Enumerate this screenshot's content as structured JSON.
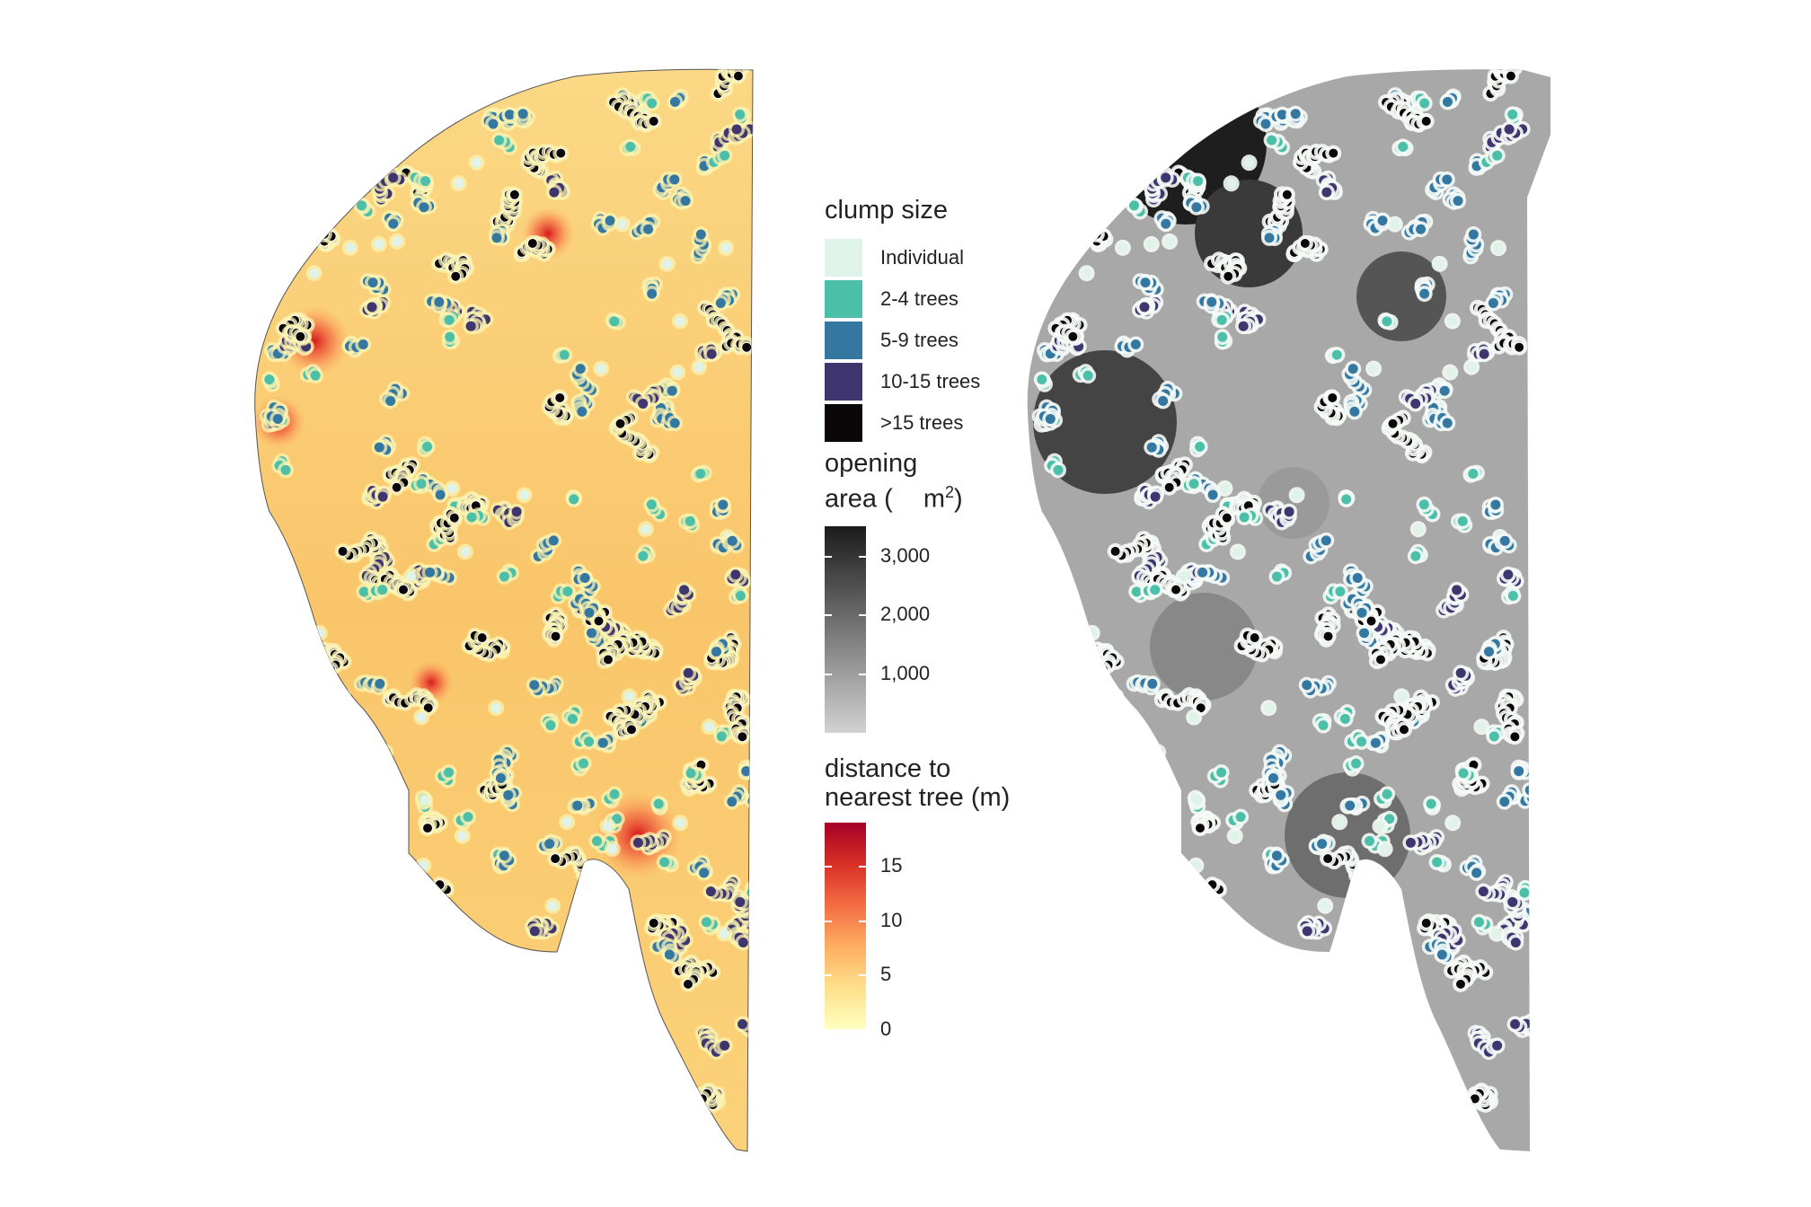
{
  "legend_clump": {
    "title": "clump size",
    "items": [
      {
        "label": "Individual",
        "color": "#dff3e8"
      },
      {
        "label": "2-4 trees",
        "color": "#4cbfa8"
      },
      {
        "label": "5-9 trees",
        "color": "#3478a2"
      },
      {
        "label": "10-15 trees",
        "color": "#3f356f"
      },
      {
        "label": ">15 trees",
        "color": "#0b0608"
      }
    ]
  },
  "legend_opening": {
    "title_line1": "opening",
    "title_line2": "area (",
    "title_unit": "m",
    "title_sup": "2",
    "title_close": ")",
    "ticks": [
      "3,000",
      "2,000",
      "1,000"
    ],
    "range": [
      0,
      3500
    ],
    "tick_values": [
      3000,
      2000,
      1000
    ],
    "gradient": [
      "#d0d0d0",
      "#1b1b1b"
    ]
  },
  "legend_distance": {
    "title_line1": "distance to",
    "title_line2": "nearest tree (m)",
    "ticks": [
      "15",
      "10",
      "5",
      "0"
    ],
    "tick_values": [
      15,
      10,
      5,
      0
    ],
    "range": [
      0,
      19
    ],
    "gradient": [
      "#ffffbf",
      "#fdd26a",
      "#f99b3b",
      "#e3371e",
      "#a50026"
    ]
  }
}
